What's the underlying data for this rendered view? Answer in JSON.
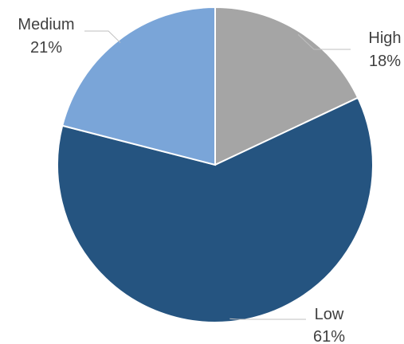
{
  "chart_data": {
    "type": "pie",
    "title": "",
    "start_angle_deg": 0,
    "direction": "clockwise",
    "slices": [
      {
        "label": "High",
        "pct_label": "18%",
        "value": 18,
        "color": "#a5a5a5"
      },
      {
        "label": "Low",
        "pct_label": "61%",
        "value": 61,
        "color": "#255480"
      },
      {
        "label": "Medium",
        "pct_label": "21%",
        "value": 21,
        "color": "#7aa5d8"
      }
    ],
    "data_labels": "category and percent, outside with leader lines",
    "legend": "none"
  }
}
